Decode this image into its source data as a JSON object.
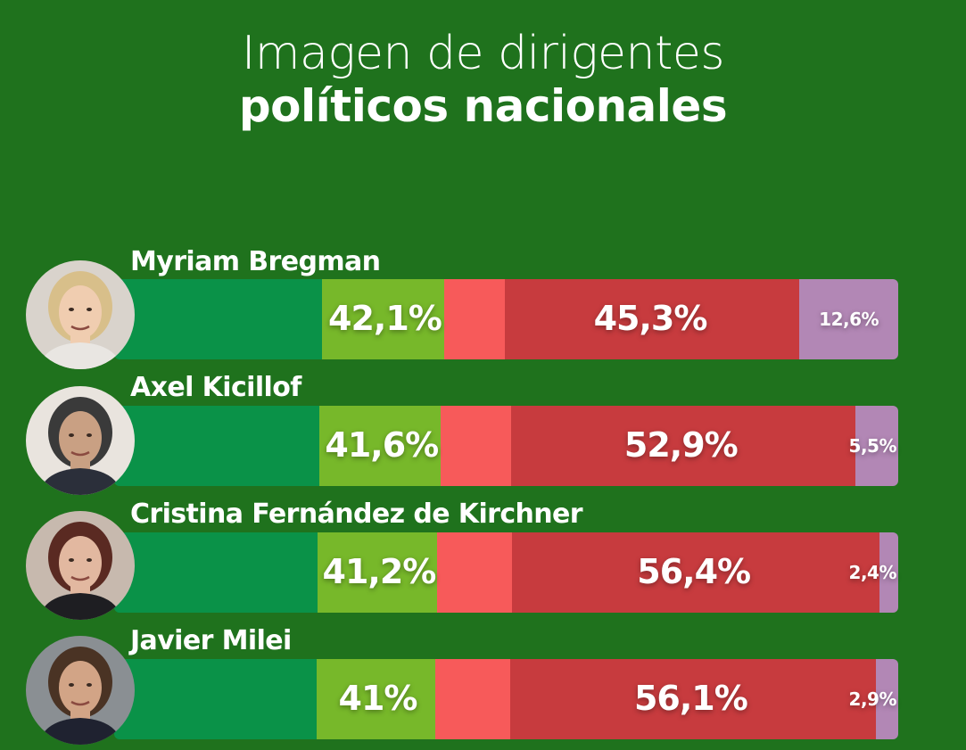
{
  "title": {
    "line1": "Imagen de dirigentes",
    "line2": "políticos nacionales"
  },
  "colors": {
    "background": "#1f721d",
    "positive_dark": "#0a9248",
    "positive_light": "#77b82a",
    "negative_light": "#f75a5a",
    "negative_dark": "#c73b3e",
    "unknown": "#b287b5"
  },
  "chart_data": {
    "type": "bar",
    "stacked": true,
    "orientation": "horizontal",
    "categories": [
      "Myriam Bregman",
      "Axel Kicillof",
      "Cristina Fernández de Kirchner",
      "Javier Milei"
    ],
    "series": [
      {
        "values": [
          42.1,
          41.6,
          41.2,
          41
        ]
      },
      {
        "values": [
          45.3,
          52.9,
          56.4,
          56.1
        ]
      },
      {
        "values": [
          12.6,
          5.5,
          2.4,
          2.9
        ]
      }
    ],
    "labels": {
      "positive": [
        "42,1%",
        "41,6%",
        "41,2%",
        "41%"
      ],
      "negative": [
        "45,3%",
        "52,9%",
        "56,4%",
        "56,1%"
      ],
      "unknown": [
        "12,6%",
        "5,5%",
        "2,4%",
        "2,9%"
      ]
    },
    "xlim": [
      0,
      100
    ]
  },
  "avatars": [
    "avatar-icon",
    "avatar-icon",
    "avatar-icon",
    "avatar-icon"
  ]
}
